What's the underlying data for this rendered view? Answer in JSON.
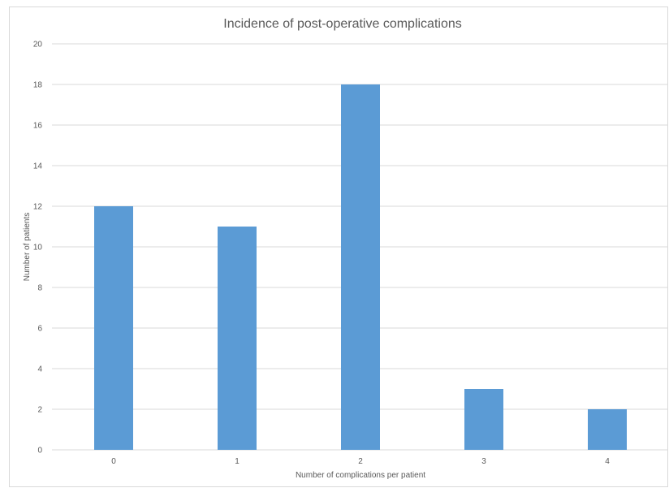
{
  "chart_data": {
    "type": "bar",
    "title": "Incidence of post-operative complications",
    "xlabel": "Number of complications per patient",
    "ylabel": "Number of patients",
    "categories": [
      "0",
      "1",
      "2",
      "3",
      "4"
    ],
    "values": [
      12,
      11,
      18,
      3,
      2
    ],
    "ylim": [
      0,
      20
    ],
    "yticks": [
      "0",
      "2",
      "4",
      "6",
      "8",
      "10",
      "12",
      "14",
      "16",
      "18",
      "20"
    ],
    "grid": true,
    "legend": "none",
    "bar_color": "#5b9bd5"
  }
}
